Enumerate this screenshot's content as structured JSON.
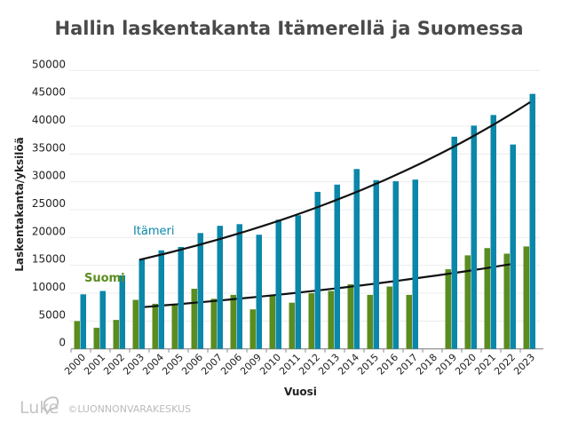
{
  "chart_data": {
    "type": "bar",
    "title": "Hallin laskentakanta Itämerellä ja Suomessa",
    "xlabel": "Vuosi",
    "ylabel": "Laskentakanta/yksilöä",
    "ylim": [
      0,
      50000
    ],
    "yticks": [
      0,
      5000,
      10000,
      15000,
      20000,
      25000,
      30000,
      35000,
      40000,
      45000,
      50000
    ],
    "grid": true,
    "categories": [
      "2000",
      "2001",
      "2002",
      "2003",
      "2004",
      "2005",
      "2006",
      "2007",
      "2006",
      "2009",
      "2010",
      "2011",
      "2012",
      "2013",
      "2014",
      "2015",
      "2016",
      "2017",
      "2018",
      "2019",
      "2020",
      "2021",
      "2022",
      "2023"
    ],
    "series": [
      {
        "name": "Suomi",
        "color": "#5b8c1f",
        "values": [
          5000,
          3800,
          5200,
          8800,
          8100,
          7800,
          10800,
          9000,
          9700,
          7100,
          9600,
          8300,
          10000,
          10400,
          11600,
          9700,
          11200,
          9700,
          null,
          14300,
          16800,
          18100,
          17100,
          18400
        ],
        "trend": {
          "type": "exponential",
          "from": "2003",
          "to": "2022",
          "start": 7450,
          "end": 15200
        }
      },
      {
        "name": "Itämeri",
        "color": "#0b87a9",
        "values": [
          9800,
          10400,
          13200,
          16100,
          17700,
          18300,
          20800,
          22100,
          22400,
          20500,
          23200,
          24000,
          28200,
          29500,
          32300,
          30300,
          30100,
          30400,
          null,
          38100,
          40100,
          42000,
          36700,
          45800
        ],
        "trend": {
          "type": "exponential",
          "from": "2003",
          "to": "2023",
          "start": 16000,
          "end": 44300
        }
      }
    ],
    "legend": "inline labels"
  },
  "footer": {
    "logo": "Luke",
    "copyright": "©LUONNONVARAKESKUS"
  }
}
